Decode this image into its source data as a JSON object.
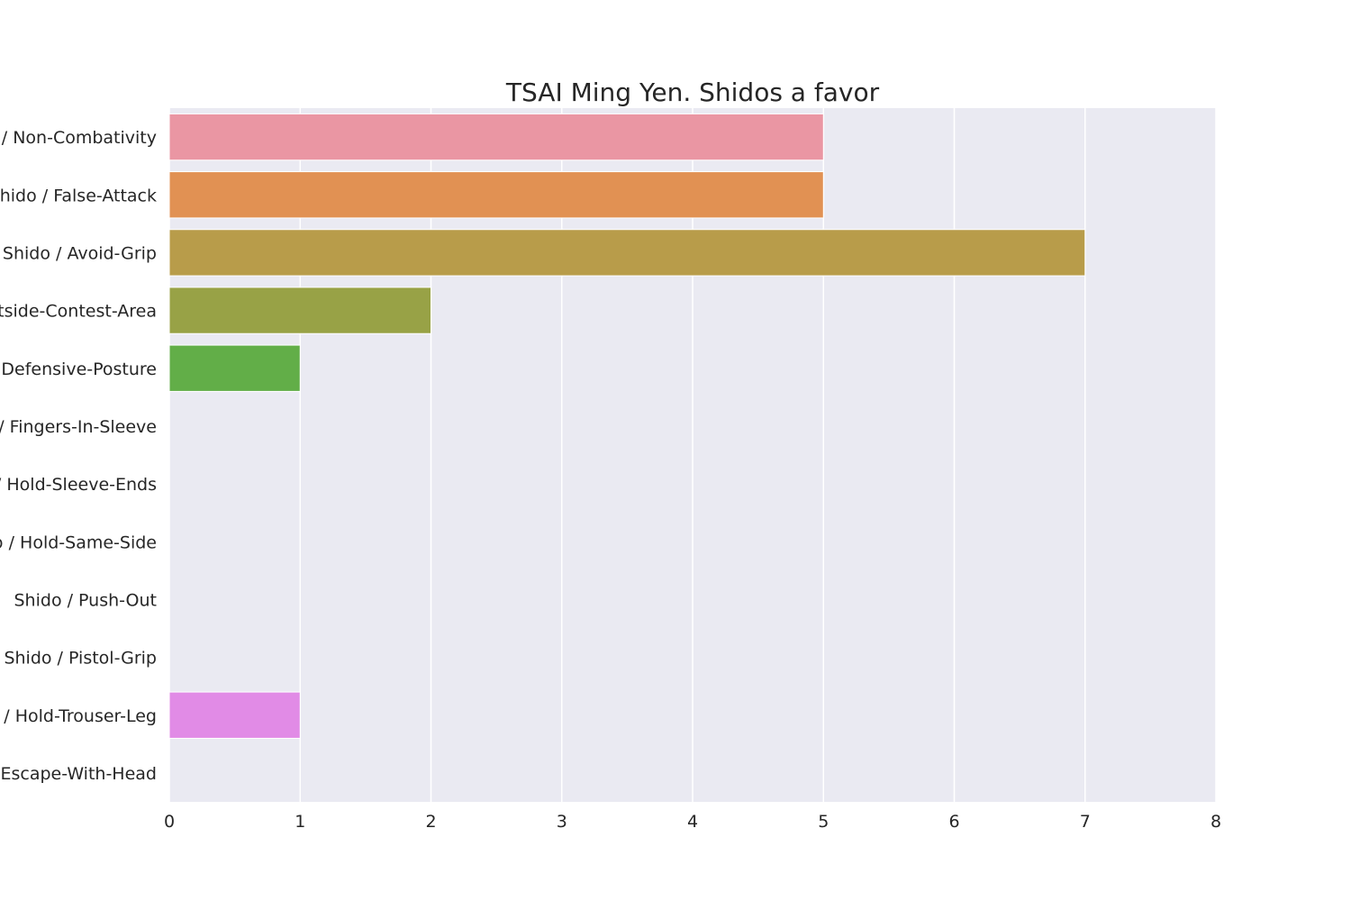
{
  "chart_data": {
    "type": "bar",
    "orientation": "horizontal",
    "title": "TSAI Ming Yen. Shidos a favor",
    "xlabel": "",
    "ylabel": "",
    "categories": [
      "Shido / Non-Combativity",
      "Shido / False-Attack",
      "Shido / Avoid-Grip",
      "Shido / Outside-Contest-Area",
      "Shido / Defensive-Posture",
      "Shido / Fingers-In-Sleeve",
      "Shido / Hold-Sleeve-Ends",
      "Shido / Hold-Same-Side",
      "Shido / Push-Out",
      "Shido / Pistol-Grip",
      "Shido / Hold-Trouser-Leg",
      "Shido / Escape-With-Head"
    ],
    "values": [
      5,
      5,
      7,
      2,
      1,
      0,
      0,
      0,
      0,
      0,
      1,
      0
    ],
    "colors": [
      "#ea96a3",
      "#e19153",
      "#b89c4a",
      "#98a246",
      "#62ae48",
      "#4db28d",
      "#4fafb0",
      "#52abc8",
      "#7aa3e6",
      "#bc91e7",
      "#e18be6",
      "#e78dc1"
    ],
    "xlim": [
      0,
      8
    ],
    "xticks": [
      "0",
      "1",
      "2",
      "3",
      "4",
      "5",
      "6",
      "7",
      "8"
    ],
    "grid": true,
    "legend": "none",
    "plot_background": "#eaeaf2",
    "grid_color": "#ffffff"
  }
}
